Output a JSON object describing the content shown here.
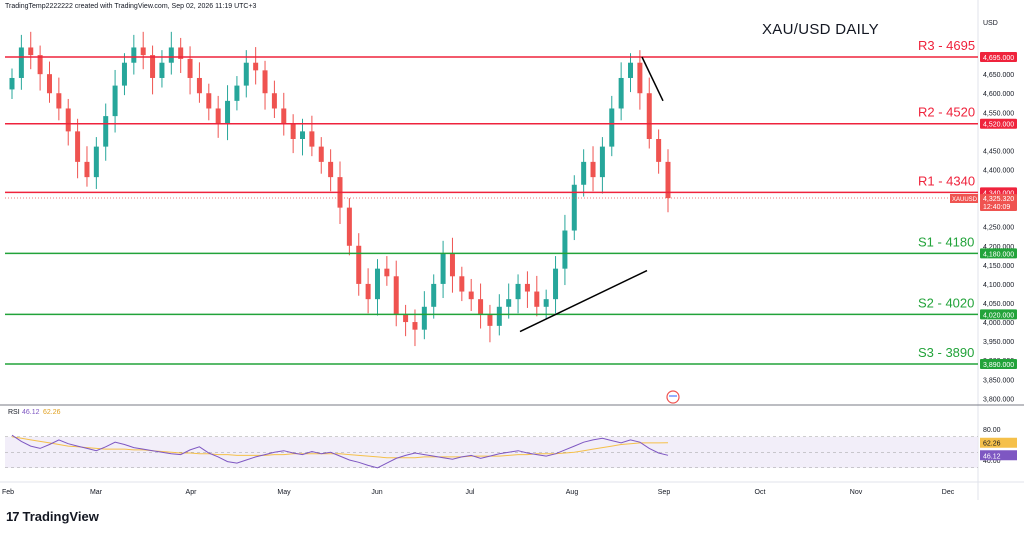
{
  "header": {
    "text": "TradingTemp2222222 created with TradingView.com, Sep 02, 2026 11:19 UTC+3"
  },
  "title": "XAU/USD DAILY",
  "currency": "USD",
  "brand": "TradingView",
  "colors": {
    "up": "#26a69a",
    "down": "#ef5350",
    "resistance": "#ef233c",
    "support": "#22a33a",
    "rsi": "#7e57c2",
    "rsi_ma": "#f5c04a",
    "trend": "#000000"
  },
  "chart_data": [
    {
      "type": "candlestick",
      "symbol": "XAUUSD",
      "title": "XAU/USD DAILY",
      "ylim": [
        3800,
        4750
      ],
      "y_ticks": [
        {
          "v": 4650,
          "label": "4,650.000"
        },
        {
          "v": 4600,
          "label": "4,600.000"
        },
        {
          "v": 4550,
          "label": "4,550.000"
        },
        {
          "v": 4450,
          "label": "4,450.000"
        },
        {
          "v": 4400,
          "label": "4,400.000"
        },
        {
          "v": 4250,
          "label": "4,250.000"
        },
        {
          "v": 4200,
          "label": "4,200.000"
        },
        {
          "v": 4150,
          "label": "4,150.000"
        },
        {
          "v": 4100,
          "label": "4,100.000"
        },
        {
          "v": 4050,
          "label": "4,050.000"
        },
        {
          "v": 4000,
          "label": "4,000.000"
        },
        {
          "v": 3950,
          "label": "3,950.000"
        },
        {
          "v": 3900,
          "label": "3,900.000"
        },
        {
          "v": 3850,
          "label": "3,850.000"
        },
        {
          "v": 3800,
          "label": "3,800.000"
        }
      ],
      "x_labels": [
        "Feb",
        "Mar",
        "Apr",
        "May",
        "Jun",
        "Jul",
        "Aug",
        "Sep",
        "Oct",
        "Nov",
        "Dec"
      ],
      "levels": [
        {
          "name": "R3",
          "value": 4695,
          "label": "R3 - 4695",
          "price_tag": "4,695.000",
          "kind": "resistance"
        },
        {
          "name": "R2",
          "value": 4520,
          "label": "R2 - 4520",
          "price_tag": "4,520.000",
          "kind": "resistance"
        },
        {
          "name": "R1",
          "value": 4340,
          "label": "R1 - 4340",
          "price_tag": "4,340.000",
          "kind": "resistance"
        },
        {
          "name": "S1",
          "value": 4180,
          "label": "S1 - 4180",
          "price_tag": "4,180.000",
          "kind": "support"
        },
        {
          "name": "S2",
          "value": 4020,
          "label": "S2 - 4020",
          "price_tag": "4,020.000",
          "kind": "support"
        },
        {
          "name": "S3",
          "value": 3890,
          "label": "S3 - 3890",
          "price_tag": "3,890.000",
          "kind": "support"
        }
      ],
      "last_price": {
        "symbol": "XAUUSD",
        "value": 4325.32,
        "label": "4,325.320",
        "countdown": "12:40:09"
      },
      "closes": [
        4640,
        4720,
        4700,
        4650,
        4600,
        4560,
        4500,
        4420,
        4380,
        4460,
        4540,
        4620,
        4680,
        4720,
        4700,
        4640,
        4680,
        4720,
        4690,
        4640,
        4600,
        4560,
        4520,
        4580,
        4620,
        4680,
        4660,
        4600,
        4560,
        4520,
        4480,
        4500,
        4460,
        4420,
        4380,
        4300,
        4200,
        4100,
        4060,
        4140,
        4120,
        4020,
        4000,
        3980,
        4040,
        4100,
        4180,
        4120,
        4080,
        4060,
        4020,
        3990,
        4040,
        4060,
        4100,
        4080,
        4040,
        4060,
        4140,
        4240,
        4360,
        4420,
        4380,
        4460,
        4560,
        4640,
        4680,
        4600,
        4480,
        4420,
        4325
      ],
      "trendlines": [
        {
          "from_x": "Jul 16",
          "from_y": 3975,
          "to_x": "Aug 16",
          "to_y": 4135
        },
        {
          "from_x": "Aug 23",
          "from_y": 4695,
          "to_x": "Aug 31",
          "to_y": 4580
        }
      ]
    },
    {
      "type": "line",
      "name": "RSI",
      "rsi_value": "46.12",
      "ma_value": "62.26",
      "ylim": [
        30,
        80
      ],
      "y_ticks": [
        {
          "v": 80,
          "label": "80.00"
        },
        {
          "v": 40,
          "label": "40.00"
        }
      ],
      "series": [
        {
          "name": "RSI",
          "values": [
            72,
            64,
            58,
            55,
            60,
            66,
            61,
            58,
            55,
            52,
            57,
            63,
            60,
            56,
            54,
            52,
            50,
            48,
            47,
            53,
            57,
            49,
            44,
            38,
            36,
            40,
            44,
            47,
            50,
            52,
            49,
            47,
            51,
            48,
            50,
            45,
            40,
            37,
            33,
            30,
            36,
            42,
            46,
            49,
            47,
            45,
            43,
            41,
            44,
            46,
            42,
            45,
            48,
            50,
            52,
            49,
            47,
            45,
            48,
            53,
            58,
            63,
            66,
            68,
            65,
            62,
            66,
            63,
            55,
            49,
            46.12
          ]
        },
        {
          "name": "RSI MA",
          "values": [
            70,
            68,
            66,
            64,
            62,
            60,
            58,
            57,
            56,
            55,
            54,
            54,
            54,
            53,
            53,
            52,
            51,
            50,
            49,
            49,
            48,
            48,
            47,
            47,
            46,
            46,
            46,
            46,
            47,
            47,
            48,
            48,
            48,
            48,
            48,
            48,
            47,
            46,
            45,
            44,
            43,
            43,
            43,
            43,
            44,
            44,
            44,
            44,
            44,
            45,
            45,
            45,
            45,
            46,
            47,
            47,
            48,
            48,
            48,
            49,
            50,
            52,
            54,
            56,
            58,
            60,
            61,
            62,
            62,
            62,
            62.26
          ]
        }
      ]
    }
  ]
}
